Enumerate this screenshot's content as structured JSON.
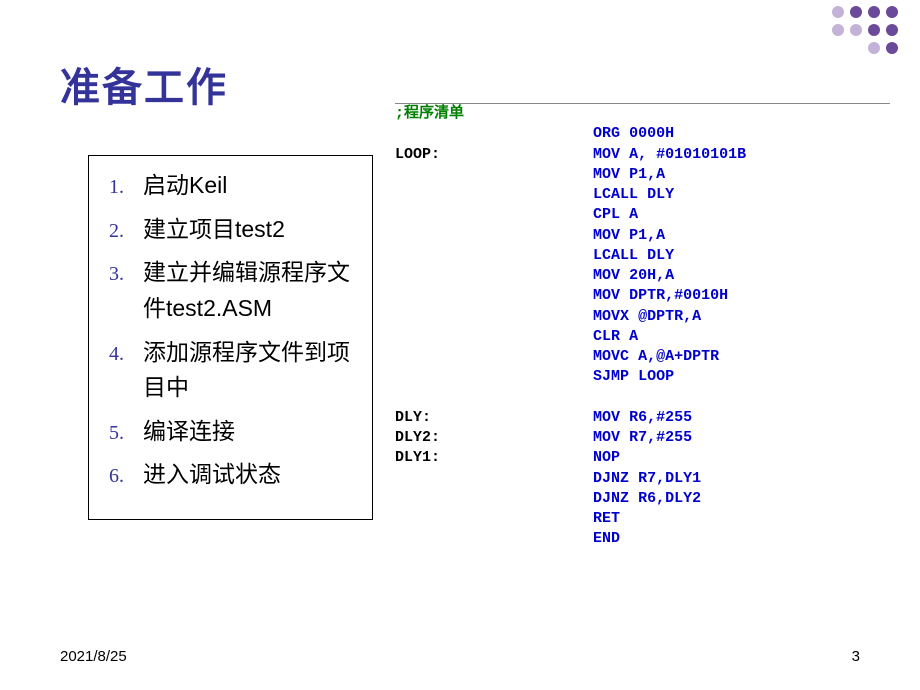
{
  "title": "准备工作",
  "list": [
    {
      "num": "1.",
      "text": "启动Keil"
    },
    {
      "num": "2.",
      "text": "建立项目test2"
    },
    {
      "num": "3.",
      "text": "建立并编辑源程序文件test2.ASM"
    },
    {
      "num": "4.",
      "text": "添加源程序文件到项目中"
    },
    {
      "num": "5.",
      "text": "编译连接"
    },
    {
      "num": "6.",
      "text": "进入调试状态"
    }
  ],
  "code": {
    "comment": ";程序清单",
    "lines": [
      {
        "label": "",
        "op": "ORG",
        "args": "0000H"
      },
      {
        "label": "LOOP:",
        "op": "MOV",
        "args": "A, #01010101B"
      },
      {
        "label": "",
        "op": "MOV",
        "args": "P1,A"
      },
      {
        "label": "",
        "op": "LCALL",
        "args": "DLY"
      },
      {
        "label": "",
        "op": "CPL",
        "args": "A"
      },
      {
        "label": "",
        "op": "MOV",
        "args": "P1,A"
      },
      {
        "label": "",
        "op": "LCALL",
        "args": "DLY"
      },
      {
        "label": "",
        "op": "MOV",
        "args": "20H,A"
      },
      {
        "label": "",
        "op": "MOV",
        "args": "DPTR,#0010H"
      },
      {
        "label": "",
        "op": "MOVX",
        "args": "@DPTR,A"
      },
      {
        "label": "",
        "op": "CLR",
        "args": "A"
      },
      {
        "label": "",
        "op": "MOVC",
        "args": "A,@A+DPTR"
      },
      {
        "label": "",
        "op": "SJMP",
        "args": "LOOP"
      },
      {
        "label": "",
        "op": "",
        "args": ""
      },
      {
        "label": "DLY:",
        "op": "MOV",
        "args": "R6,#255"
      },
      {
        "label": "DLY2:",
        "op": "MOV",
        "args": "R7,#255"
      },
      {
        "label": "DLY1:",
        "op": "NOP",
        "args": ""
      },
      {
        "label": "",
        "op": "DJNZ",
        "args": "R7,DLY1"
      },
      {
        "label": "",
        "op": "DJNZ",
        "args": "R6,DLY2"
      },
      {
        "label": "",
        "op": "RET",
        "args": ""
      },
      {
        "label": "",
        "op": "END",
        "args": ""
      }
    ]
  },
  "footer": {
    "date": "2021/8/25",
    "page": "3"
  },
  "style": {
    "title_color": "#333399",
    "keyword_color": "#0000cc",
    "comment_color": "#008000",
    "dot_dark": "#6b4a99",
    "dot_light": "#c3b3d9"
  }
}
